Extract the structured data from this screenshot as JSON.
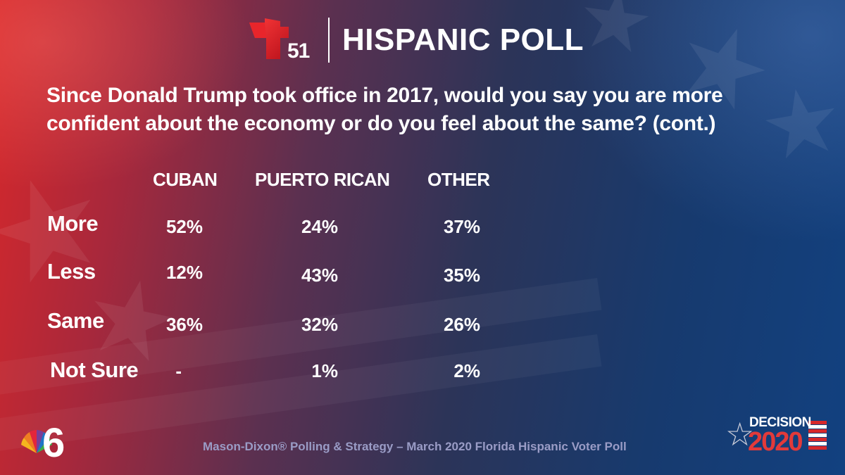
{
  "header": {
    "station_number": "51",
    "title": "HISPANIC POLL"
  },
  "question": "Since Donald Trump took office in 2017, would you say you are more confident about the economy or do you feel about the same? (cont.)",
  "table": {
    "columns": [
      "CUBAN",
      "PUERTO RICAN",
      "OTHER"
    ],
    "rows": [
      {
        "label": "More",
        "values": [
          "52%",
          "24%",
          "37%"
        ]
      },
      {
        "label": "Less",
        "values": [
          "12%",
          "43%",
          "35%"
        ]
      },
      {
        "label": "Same",
        "values": [
          "36%",
          "32%",
          "26%"
        ]
      },
      {
        "label": "Not Sure",
        "values": [
          "-",
          "1%",
          "2%"
        ]
      }
    ]
  },
  "footer": {
    "source": "Mason-Dixon® Polling & Strategy – March 2020 Florida Hispanic Voter Poll",
    "left_logo_number": "6",
    "right_logo_word": "DECISION",
    "right_logo_year": "2020"
  },
  "colors": {
    "accent_red": "#d6282b",
    "accent_blue": "#124180",
    "footer_text": "#9a9cc6"
  },
  "icons": [
    "telemundo-t-logo",
    "nbc-peacock-logo",
    "decision-star-icon"
  ]
}
